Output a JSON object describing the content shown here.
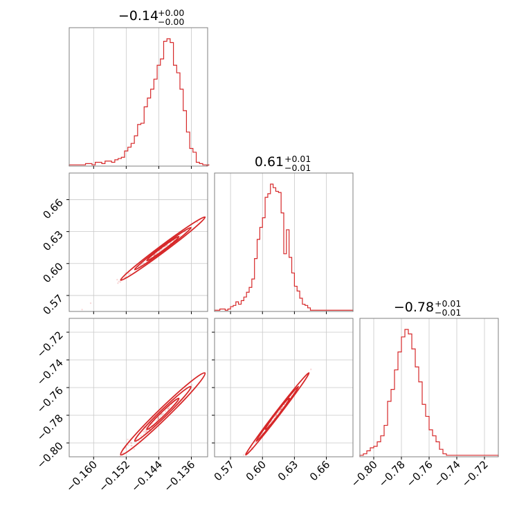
{
  "chart_data": {
    "type": "corner",
    "color": "#d62728",
    "grid": true,
    "titles": [
      {
        "value": "−0.14",
        "upper": "+0.00",
        "lower": "−0.00"
      },
      {
        "value": "0.61",
        "upper": "+0.01",
        "lower": "−0.01"
      },
      {
        "value": "−0.78",
        "upper": "+0.01",
        "lower": "−0.01"
      }
    ],
    "parameters": [
      {
        "median": -0.143,
        "sigma_minus": 0.0035,
        "sigma_plus": 0.0035,
        "range": [
          -0.166,
          -0.132
        ],
        "ticks": [
          -0.16,
          -0.152,
          -0.144,
          -0.136
        ],
        "tick_labels": [
          "−0.160",
          "−0.152",
          "−0.144",
          "−0.136"
        ]
      },
      {
        "median": 0.614,
        "sigma_minus": 0.01,
        "sigma_plus": 0.01,
        "range": [
          0.555,
          0.685
        ],
        "ticks": [
          0.57,
          0.6,
          0.63,
          0.66
        ],
        "tick_labels": [
          "0.57",
          "0.60",
          "0.63",
          "0.66"
        ]
      },
      {
        "median": -0.779,
        "sigma_minus": 0.01,
        "sigma_plus": 0.01,
        "range": [
          -0.81,
          -0.71
        ],
        "ticks": [
          -0.8,
          -0.78,
          -0.76,
          -0.74,
          -0.72
        ],
        "tick_labels": [
          "−0.80",
          "−0.78",
          "−0.76",
          "−0.74",
          "−0.72"
        ]
      }
    ],
    "histograms": [
      {
        "bins": [
          -0.166,
          -0.1652,
          -0.1644,
          -0.1636,
          -0.1628,
          -0.162,
          -0.1612,
          -0.1604,
          -0.1596,
          -0.1588,
          -0.158,
          -0.1572,
          -0.1564,
          -0.1556,
          -0.1548,
          -0.154,
          -0.1532,
          -0.1524,
          -0.1516,
          -0.1508,
          -0.15,
          -0.1492,
          -0.1484,
          -0.1476,
          -0.1468,
          -0.146,
          -0.1452,
          -0.1444,
          -0.1436,
          -0.1428,
          -0.142,
          -0.1412,
          -0.1404,
          -0.1396,
          -0.1388,
          -0.138,
          -0.1372,
          -0.1364,
          -0.1356,
          -0.1348,
          -0.134,
          -0.1332,
          -0.1324
        ],
        "counts": [
          1,
          1,
          1,
          1,
          1,
          2,
          2,
          1,
          3,
          3,
          2,
          4,
          4,
          3,
          5,
          6,
          7,
          12,
          15,
          18,
          24,
          33,
          34,
          47,
          54,
          61,
          69,
          80,
          85,
          99,
          101,
          98,
          80,
          74,
          61,
          44,
          27,
          14,
          11,
          3,
          2,
          1,
          1
        ]
      },
      {
        "bins": [
          0.555,
          0.5575,
          0.56,
          0.5625,
          0.565,
          0.5675,
          0.57,
          0.5725,
          0.575,
          0.5775,
          0.58,
          0.5825,
          0.585,
          0.5875,
          0.59,
          0.5925,
          0.595,
          0.5975,
          0.6,
          0.6025,
          0.605,
          0.6075,
          0.61,
          0.6125,
          0.615,
          0.6175,
          0.62,
          0.6225,
          0.625,
          0.6275,
          0.63,
          0.6325,
          0.635,
          0.6375,
          0.64,
          0.6425,
          0.645,
          0.6475,
          0.65,
          0.6525,
          0.655,
          0.6575,
          0.66,
          0.6625,
          0.665,
          0.6675,
          0.67,
          0.6725,
          0.675,
          0.6775,
          0.68,
          0.6825,
          0.685
        ],
        "counts": [
          1,
          1,
          2,
          2,
          1,
          2,
          4,
          5,
          8,
          6,
          9,
          12,
          16,
          20,
          27,
          44,
          60,
          70,
          78,
          95,
          98,
          106,
          103,
          100,
          99,
          82,
          48,
          68,
          45,
          32,
          21,
          17,
          11,
          6,
          5,
          3,
          1,
          1,
          1,
          1,
          1,
          1,
          1,
          1,
          1,
          1,
          1,
          1,
          1,
          1,
          1,
          1
        ]
      },
      {
        "bins": [
          -0.81,
          -0.8075,
          -0.805,
          -0.8025,
          -0.8,
          -0.7975,
          -0.795,
          -0.7925,
          -0.79,
          -0.7875,
          -0.785,
          -0.7825,
          -0.78,
          -0.7775,
          -0.775,
          -0.7725,
          -0.77,
          -0.7675,
          -0.765,
          -0.7625,
          -0.76,
          -0.7575,
          -0.755,
          -0.7525,
          -0.75,
          -0.7475,
          -0.745,
          -0.7425,
          -0.74,
          -0.7375,
          -0.735,
          -0.7325,
          -0.73,
          -0.7275,
          -0.725,
          -0.7225,
          -0.72,
          -0.7175,
          -0.715,
          -0.7125,
          -0.71
        ],
        "counts": [
          1,
          2,
          4,
          6,
          7,
          10,
          14,
          21,
          37,
          45,
          58,
          70,
          80,
          85,
          82,
          72,
          60,
          50,
          35,
          27,
          18,
          14,
          10,
          5,
          2,
          1,
          1,
          1,
          1,
          1,
          1,
          1,
          1,
          1,
          1,
          1,
          1,
          1,
          1,
          1
        ]
      }
    ],
    "pairs": [
      {
        "x_param": 0,
        "y_param": 1,
        "correlation": 0.99
      },
      {
        "x_param": 0,
        "y_param": 2,
        "correlation": 0.98
      },
      {
        "x_param": 1,
        "y_param": 2,
        "correlation": 0.995
      }
    ]
  }
}
